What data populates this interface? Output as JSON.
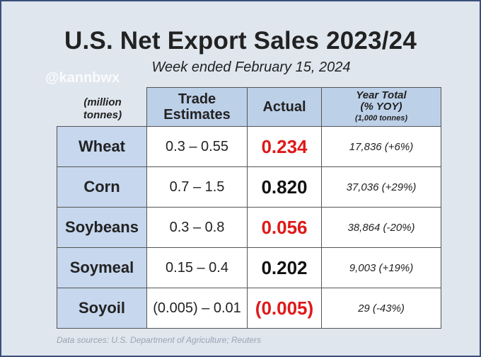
{
  "title": "U.S. Net Export Sales 2023/24",
  "subtitle": "Week ended February 15, 2024",
  "watermark": "@kannbwx",
  "unit_note": "(million tonnes)",
  "headers": {
    "trade_estimates": "Trade Estimates",
    "actual": "Actual",
    "year_total": "Year Total",
    "year_total_pct": "(% YOY)",
    "year_total_unit": "(1,000 tonnes)"
  },
  "rows": [
    {
      "crop": "Wheat",
      "estimate": "0.3 – 0.55",
      "actual": "0.234",
      "actual_color": "#e01818",
      "year_total": "17,836  (+6%)"
    },
    {
      "crop": "Corn",
      "estimate": "0.7 – 1.5",
      "actual": "0.820",
      "actual_color": "#111111",
      "year_total": "37,036  (+29%)"
    },
    {
      "crop": "Soybeans",
      "estimate": "0.3 – 0.8",
      "actual": "0.056",
      "actual_color": "#e01818",
      "year_total": "38,864  (-20%)"
    },
    {
      "crop": "Soymeal",
      "estimate": "0.15 – 0.4",
      "actual": "0.202",
      "actual_color": "#111111",
      "year_total": "9,003  (+19%)"
    },
    {
      "crop": "Soyoil",
      "estimate": "(0.005) – 0.01",
      "actual": "(0.005)",
      "actual_color": "#e01818",
      "year_total": "29  (-43%)"
    }
  ],
  "source": "Data sources: U.S. Department of Agriculture; Reuters"
}
